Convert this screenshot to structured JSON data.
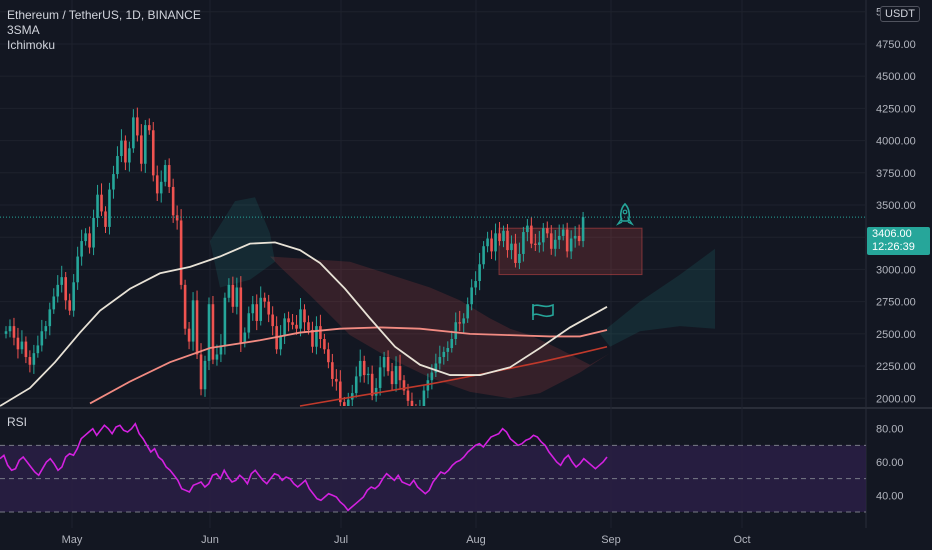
{
  "header": {
    "symbol_line": "Ethereum / TetherUS, 1D, BINANCE",
    "indicators": [
      "3SMA",
      "Ichimoku"
    ],
    "currency_button": "USDT"
  },
  "last_price": {
    "value": "3406.00",
    "countdown": "12:26:39"
  },
  "rsi_panel": {
    "label": "RSI"
  },
  "colors": {
    "background": "#131722",
    "bullish": "#26a69a",
    "bearish": "#ef5350",
    "rsi_line": "#d321e0",
    "rsi_band": "#2a1f45",
    "sma_fast": "#e8e2d6",
    "sma_slow": "#f28b82",
    "sma_long": "#c0392b",
    "grid": "#1e222d"
  },
  "icons": [
    "rocket-icon",
    "flag-icon"
  ],
  "chart_data": [
    {
      "type": "candlestick",
      "ylim": [
        1940,
        5060
      ],
      "yticks": [
        "5000.00",
        "4750.00",
        "4500.00",
        "4250.00",
        "4000.00",
        "3750.00",
        "3500.00",
        "3250.00",
        "3000.00",
        "2750.00",
        "2500.00",
        "2250.00",
        "2000.00"
      ],
      "x_month_labels": [
        "May",
        "Jun",
        "Jul",
        "Aug",
        "Sep",
        "Oct"
      ],
      "candles_close": [
        2520,
        2560,
        2470,
        2380,
        2440,
        2320,
        2260,
        2350,
        2410,
        2520,
        2560,
        2690,
        2790,
        2880,
        2940,
        2760,
        2680,
        2900,
        3100,
        3220,
        3280,
        3170,
        3400,
        3580,
        3450,
        3330,
        3620,
        3740,
        3880,
        4000,
        3830,
        3940,
        4180,
        4040,
        3820,
        4120,
        4080,
        3730,
        3590,
        3680,
        3810,
        3640,
        3420,
        3380,
        2880,
        2540,
        2440,
        2760,
        2340,
        2070,
        2290,
        2730,
        2300,
        2340,
        2410,
        2780,
        2880,
        2710,
        2860,
        2430,
        2510,
        2660,
        2730,
        2600,
        2780,
        2750,
        2650,
        2560,
        2380,
        2480,
        2620,
        2590,
        2570,
        2540,
        2690,
        2590,
        2530,
        2400,
        2560,
        2460,
        2380,
        2280,
        2150,
        2130,
        1970,
        1930,
        1990,
        2040,
        2170,
        2290,
        2180,
        2190,
        2020,
        2080,
        2240,
        2320,
        2210,
        2110,
        2250,
        2140,
        2060,
        1980,
        1880,
        1860,
        1900,
        2060,
        2140,
        2200,
        2270,
        2320,
        2360,
        2390,
        2460,
        2590,
        2580,
        2620,
        2730,
        2860,
        2910,
        3040,
        3180,
        3240,
        3140,
        3280,
        3220,
        3300,
        3150,
        3200,
        3050,
        3120,
        3290,
        3340,
        3200,
        3190,
        3210,
        3320,
        3280,
        3160,
        3230,
        3260,
        3310,
        3140,
        3240,
        3260,
        3220,
        3406
      ],
      "sma_fast": [
        [
          0,
          1940
        ],
        [
          30,
          2080
        ],
        [
          55,
          2280
        ],
        [
          80,
          2510
        ],
        [
          100,
          2680
        ],
        [
          130,
          2850
        ],
        [
          160,
          2970
        ],
        [
          190,
          3020
        ],
        [
          220,
          3100
        ],
        [
          250,
          3200
        ],
        [
          275,
          3210
        ],
        [
          300,
          3150
        ],
        [
          320,
          3050
        ],
        [
          345,
          2850
        ],
        [
          370,
          2620
        ],
        [
          395,
          2400
        ],
        [
          420,
          2260
        ],
        [
          450,
          2180
        ],
        [
          480,
          2180
        ],
        [
          510,
          2240
        ],
        [
          540,
          2390
        ],
        [
          570,
          2550
        ],
        [
          607,
          2710
        ]
      ],
      "sma_slow": [
        [
          90,
          1960
        ],
        [
          130,
          2130
        ],
        [
          170,
          2280
        ],
        [
          210,
          2390
        ],
        [
          260,
          2450
        ],
        [
          300,
          2510
        ],
        [
          340,
          2540
        ],
        [
          380,
          2550
        ],
        [
          420,
          2540
        ],
        [
          470,
          2500
        ],
        [
          510,
          2490
        ],
        [
          550,
          2480
        ],
        [
          580,
          2480
        ],
        [
          607,
          2530
        ]
      ],
      "sma_long": [
        [
          300,
          1940
        ],
        [
          360,
          2020
        ],
        [
          430,
          2110
        ],
        [
          490,
          2200
        ],
        [
          540,
          2280
        ],
        [
          580,
          2350
        ],
        [
          607,
          2400
        ]
      ],
      "ichimoku_bear_cloud": [
        [
          270,
          3100
        ],
        [
          310,
          3080
        ],
        [
          350,
          3060
        ],
        [
          390,
          2960
        ],
        [
          430,
          2860
        ],
        [
          460,
          2760
        ],
        [
          490,
          2620
        ],
        [
          510,
          2540
        ],
        [
          530,
          2490
        ],
        [
          560,
          2380
        ],
        [
          590,
          2260
        ],
        [
          610,
          2350
        ],
        [
          580,
          2200
        ],
        [
          540,
          2040
        ],
        [
          510,
          2000
        ],
        [
          470,
          2050
        ],
        [
          430,
          2160
        ],
        [
          390,
          2310
        ],
        [
          350,
          2490
        ],
        [
          310,
          2800
        ],
        [
          280,
          3020
        ]
      ],
      "ichimoku_bull_cloud": [
        [
          210,
          3220
        ],
        [
          235,
          3530
        ],
        [
          255,
          3560
        ],
        [
          270,
          3280
        ],
        [
          275,
          3060
        ],
        [
          250,
          2920
        ],
        [
          220,
          2860
        ]
      ],
      "ichimoku_bull_cloud_right": [
        [
          600,
          2500
        ],
        [
          640,
          2750
        ],
        [
          680,
          2960
        ],
        [
          715,
          3160
        ],
        [
          715,
          2540
        ],
        [
          680,
          2560
        ],
        [
          640,
          2520
        ],
        [
          610,
          2400
        ]
      ],
      "annotation_box": {
        "x_start": 499,
        "x_end": 642,
        "high": 3320,
        "low": 2960
      }
    },
    {
      "type": "line",
      "name": "RSI",
      "ylim": [
        24,
        90
      ],
      "yticks": [
        "80.00",
        "60.00",
        "40.00"
      ],
      "levels": [
        70,
        50,
        30
      ],
      "values": [
        62,
        64,
        58,
        55,
        56,
        61,
        63,
        60,
        57,
        54,
        52,
        56,
        60,
        62,
        59,
        55,
        57,
        63,
        65,
        64,
        68,
        74,
        76,
        78,
        80,
        76,
        79,
        82,
        80,
        77,
        81,
        82,
        79,
        78,
        80,
        83,
        77,
        74,
        70,
        66,
        68,
        63,
        61,
        57,
        55,
        52,
        49,
        44,
        43,
        42,
        46,
        47,
        48,
        45,
        47,
        52,
        53,
        50,
        55,
        51,
        48,
        49,
        52,
        50,
        47,
        53,
        55,
        52,
        49,
        47,
        50,
        53,
        52,
        49,
        51,
        50,
        47,
        45,
        47,
        49,
        44,
        41,
        38,
        37,
        39,
        41,
        40,
        39,
        36,
        34,
        31,
        33,
        35,
        37,
        39,
        43,
        45,
        44,
        46,
        50,
        53,
        51,
        49,
        52,
        48,
        47,
        46,
        49,
        45,
        43,
        41,
        43,
        48,
        51,
        54,
        53,
        55,
        58,
        60,
        61,
        63,
        66,
        68,
        70,
        71,
        69,
        72,
        75,
        76,
        77,
        80,
        78,
        74,
        72,
        70,
        71,
        73,
        74,
        76,
        75,
        72,
        70,
        66,
        63,
        60,
        58,
        62,
        64,
        60,
        57,
        59,
        62,
        60,
        58,
        56,
        58,
        60,
        63
      ]
    }
  ]
}
